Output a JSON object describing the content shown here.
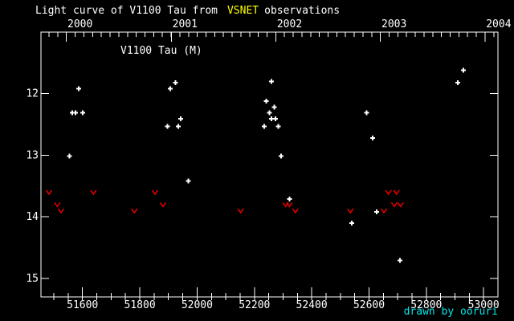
{
  "title": {
    "prefix": "Light curve of V1100 Tau from",
    "highlight": "VSNET",
    "suffix": "observations"
  },
  "plot_label": "V1100 Tau (M)",
  "credit": "drawn by ooruri",
  "colors": {
    "background": "#000000",
    "foreground": "#ffffff",
    "highlight": "#ffff00",
    "detection_marker": "#ffffff",
    "limit_marker": "#e00000",
    "credit": "#00e8e8"
  },
  "chart_data": {
    "type": "scatter",
    "title": "Light curve of V1100 Tau from VSNET observations",
    "x_axis": {
      "range": [
        51455,
        53050
      ],
      "major_ticks": [
        51600,
        51800,
        52000,
        52200,
        52400,
        52600,
        52800,
        53000
      ],
      "minor_step": 50
    },
    "x_axis_top": {
      "labels": [
        {
          "text": "2000",
          "jd": 51544
        },
        {
          "text": "2001",
          "jd": 51910
        },
        {
          "text": "2002",
          "jd": 52275
        },
        {
          "text": "2003",
          "jd": 52640
        },
        {
          "text": "2004",
          "jd": 53005
        }
      ],
      "minor_step_days": 30.4375
    },
    "y_axis": {
      "range": [
        11.0,
        15.3
      ],
      "inverted": true,
      "major_ticks": [
        12,
        13,
        14,
        15
      ]
    },
    "series": [
      {
        "name": "detections",
        "marker": "plus",
        "color": "#ffffff",
        "points": [
          [
            51555,
            13.01
          ],
          [
            51565,
            12.31
          ],
          [
            51576,
            12.31
          ],
          [
            51587,
            11.92
          ],
          [
            51601,
            12.31
          ],
          [
            51897,
            12.53
          ],
          [
            51906,
            11.92
          ],
          [
            51924,
            11.82
          ],
          [
            51934,
            12.53
          ],
          [
            51943,
            12.41
          ],
          [
            51969,
            13.42
          ],
          [
            52234,
            12.53
          ],
          [
            52241,
            12.12
          ],
          [
            52253,
            12.31
          ],
          [
            52259,
            11.8
          ],
          [
            52259,
            12.41
          ],
          [
            52270,
            12.22
          ],
          [
            52274,
            12.41
          ],
          [
            52284,
            12.53
          ],
          [
            52293,
            13.01
          ],
          [
            52322,
            13.71
          ],
          [
            52540,
            14.1
          ],
          [
            52592,
            12.31
          ],
          [
            52613,
            12.72
          ],
          [
            52627,
            13.92
          ],
          [
            52708,
            14.71
          ],
          [
            52910,
            11.82
          ],
          [
            52930,
            11.62
          ]
        ]
      },
      {
        "name": "fainter-than-limits",
        "marker": "v",
        "color": "#e00000",
        "points": [
          [
            51483,
            13.6
          ],
          [
            51512,
            13.8
          ],
          [
            51525,
            13.9
          ],
          [
            51638,
            13.6
          ],
          [
            51781,
            13.9
          ],
          [
            51853,
            13.6
          ],
          [
            51881,
            13.8
          ],
          [
            52152,
            13.9
          ],
          [
            52309,
            13.8
          ],
          [
            52322,
            13.8
          ],
          [
            52343,
            13.9
          ],
          [
            52535,
            13.9
          ],
          [
            52652,
            13.9
          ],
          [
            52668,
            13.6
          ],
          [
            52688,
            13.8
          ],
          [
            52696,
            13.6
          ],
          [
            52710,
            13.8
          ]
        ]
      }
    ]
  }
}
